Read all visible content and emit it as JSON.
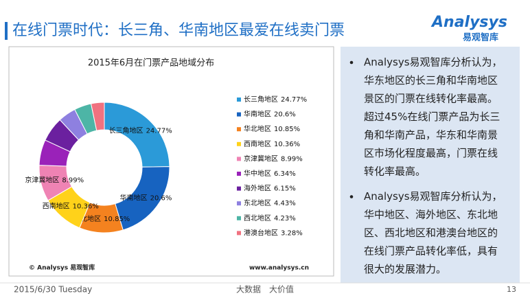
{
  "header": {
    "title": "在线门票时代：长三角、华南地区最爱在线卖门票",
    "logo": "Analysys",
    "logo_sub": "易观智库"
  },
  "chart_data": {
    "type": "donut",
    "title": "2015年6月在门票产品地域分布",
    "categories": [
      "长三角地区",
      "华南地区",
      "华北地区",
      "西南地区",
      "京津冀地区",
      "华中地区",
      "海外地区",
      "东北地区",
      "西北地区",
      "港澳台地区"
    ],
    "values": [
      24.77,
      20.6,
      10.85,
      10.36,
      8.99,
      6.34,
      6.15,
      4.43,
      4.23,
      3.28
    ],
    "value_labels": [
      "24.77%",
      "20.6%",
      "10.85%",
      "10.36%",
      "8.99%",
      "6.34%",
      "6.15%",
      "4.43%",
      "4.23%",
      "3.28%"
    ],
    "colors": [
      "#2b9ad8",
      "#1763c0",
      "#f4821f",
      "#ffd21a",
      "#ef83b4",
      "#9a22b9",
      "#6b209f",
      "#8e80e0",
      "#4db5a6",
      "#f07280"
    ],
    "legend": "right",
    "source_left": "© Analysys 易观智库",
    "source_right": "www.analysys.cn"
  },
  "bullets": [
    [
      "Analysys易观智库分析认为，",
      "华东地区的长三角和华南地区",
      "景区的门票在线转化率最高。",
      "超过45%在线门票产品为长三",
      "角和华南产品，华东和华南景",
      "区市场化程度最高，门票在线",
      "转化率最高。"
    ],
    [
      "Analysys易观智库分析认为，",
      "华中地区、海外地区、东北地",
      "区、西北地区和港澳台地区的",
      "在线门票产品转化率低，具有",
      "很大的发展潜力。"
    ]
  ],
  "footer": {
    "date": "2015/6/30 Tuesday",
    "slogan": "大数据　大价值",
    "page": "13"
  }
}
